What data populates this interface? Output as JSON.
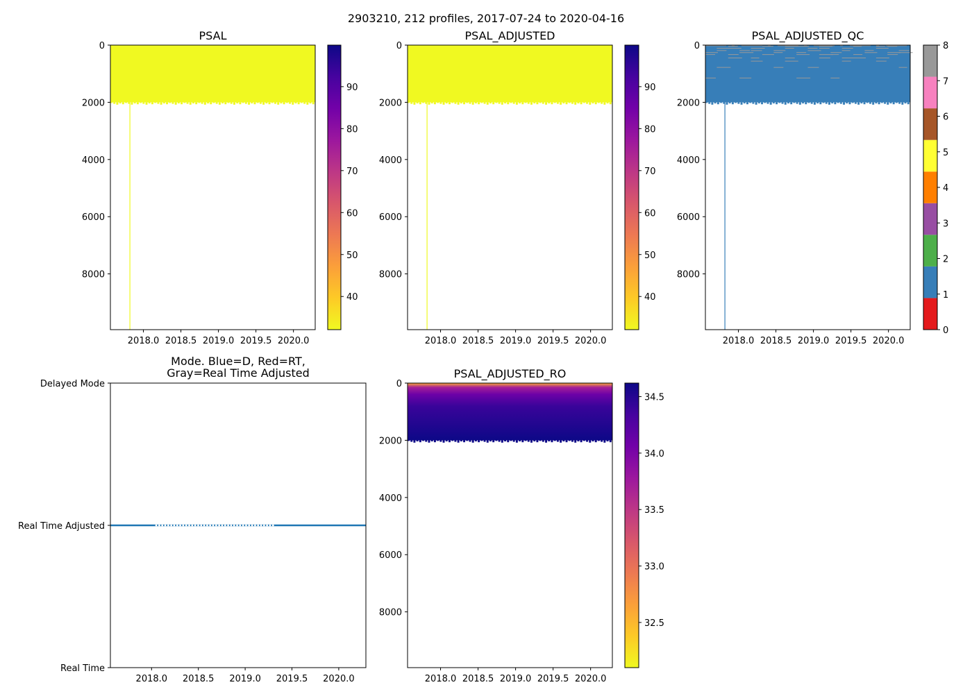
{
  "figure_title": "2903210, 212 profiles, 2017-07-24 to 2020-04-16",
  "colors": {
    "seq_stops": [
      "#f0f921",
      "#fdca26",
      "#fb9f3a",
      "#ed7953",
      "#d8576b",
      "#bd3786",
      "#9c179e",
      "#7201a8",
      "#46039f",
      "#0d0887"
    ],
    "qc_classes": [
      "#e41a1c",
      "#377eb8",
      "#4daf4a",
      "#984ea3",
      "#ff7f00",
      "#ffff33",
      "#a65628",
      "#f781bf",
      "#999999"
    ],
    "mode_line": "#1f77b4"
  },
  "chart_data": [
    {
      "id": "psal",
      "type": "heatmap",
      "title": "PSAL",
      "x_range": [
        2017.56,
        2020.29
      ],
      "y_range": [
        0,
        9950
      ],
      "y_inverted": true,
      "x_ticks": [
        "2018.0",
        "2018.5",
        "2019.0",
        "2019.5",
        "2020.0"
      ],
      "y_ticks": [
        "0",
        "2000",
        "4000",
        "6000",
        "8000"
      ],
      "data_extent": {
        "x": [
          2017.56,
          2020.29
        ],
        "depth": [
          0,
          2000
        ]
      },
      "outlier_profile": {
        "x": 2017.82,
        "depth": 9950
      },
      "colorbar": {
        "range": [
          32.1,
          99.9
        ],
        "ticks": [
          "40",
          "50",
          "60",
          "70",
          "80",
          "90"
        ]
      }
    },
    {
      "id": "psal_adjusted",
      "type": "heatmap",
      "title": "PSAL_ADJUSTED",
      "x_range": [
        2017.56,
        2020.29
      ],
      "y_range": [
        0,
        9950
      ],
      "y_inverted": true,
      "x_ticks": [
        "2018.0",
        "2018.5",
        "2019.0",
        "2019.5",
        "2020.0"
      ],
      "y_ticks": [
        "0",
        "2000",
        "4000",
        "6000",
        "8000"
      ],
      "data_extent": {
        "x": [
          2017.56,
          2020.29
        ],
        "depth": [
          0,
          2000
        ]
      },
      "outlier_profile": {
        "x": 2017.82,
        "depth": 9950
      },
      "colorbar": {
        "range": [
          32.1,
          99.9
        ],
        "ticks": [
          "40",
          "50",
          "60",
          "70",
          "80",
          "90"
        ]
      }
    },
    {
      "id": "psal_adjusted_qc",
      "type": "heatmap",
      "title": "PSAL_ADJUSTED_QC",
      "x_range": [
        2017.56,
        2020.29
      ],
      "y_range": [
        0,
        9950
      ],
      "y_inverted": true,
      "x_ticks": [
        "2018.0",
        "2018.5",
        "2019.0",
        "2019.5",
        "2020.0"
      ],
      "y_ticks": [
        "0",
        "2000",
        "4000",
        "6000",
        "8000"
      ],
      "data_extent": {
        "x": [
          2017.56,
          2020.29
        ],
        "depth": [
          0,
          2000
        ]
      },
      "dominant_flag": 1,
      "outlier_profile": {
        "x": 2017.82,
        "depth": 9950
      },
      "colorbar": {
        "range": [
          0,
          8
        ],
        "ticks": [
          "0",
          "1",
          "2",
          "3",
          "4",
          "5",
          "6",
          "7",
          "8"
        ]
      }
    },
    {
      "id": "mode",
      "type": "line",
      "title_lines": [
        "Mode. Blue=D, Red=RT,",
        "Gray=Real Time Adjusted"
      ],
      "x_range": [
        2017.56,
        2020.29
      ],
      "y_levels": [
        "Real Time",
        "Real Time Adjusted",
        "Delayed Mode"
      ],
      "x_ticks": [
        "2018.0",
        "2018.5",
        "2019.0",
        "2019.5",
        "2020.0"
      ],
      "series_level": "Real Time Adjusted"
    },
    {
      "id": "psal_adjusted_ro",
      "type": "heatmap",
      "title": "PSAL_ADJUSTED_RO",
      "x_range": [
        2017.56,
        2020.29
      ],
      "y_range": [
        0,
        9950
      ],
      "y_inverted": true,
      "x_ticks": [
        "2018.0",
        "2018.5",
        "2019.0",
        "2019.5",
        "2020.0"
      ],
      "y_ticks": [
        "0",
        "2000",
        "4000",
        "6000",
        "8000"
      ],
      "data_extent": {
        "x": [
          2017.56,
          2020.29
        ],
        "depth": [
          0,
          2000
        ]
      },
      "value_profile": [
        {
          "depth": 0,
          "value": 32.6
        },
        {
          "depth": 150,
          "value": 33.7
        },
        {
          "depth": 400,
          "value": 34.1
        },
        {
          "depth": 800,
          "value": 34.4
        },
        {
          "depth": 2000,
          "value": 34.62
        }
      ],
      "colorbar": {
        "range": [
          32.1,
          34.62
        ],
        "ticks": [
          "32.5",
          "33.0",
          "33.5",
          "34.0",
          "34.5"
        ]
      }
    }
  ]
}
